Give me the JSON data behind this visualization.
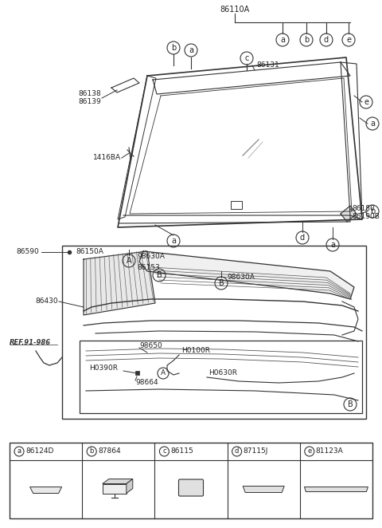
{
  "bg_color": "#ffffff",
  "line_color": "#333333",
  "text_color": "#222222",
  "fig_width": 4.8,
  "fig_height": 6.62,
  "parts_legend": [
    {
      "id": "a",
      "code": "86124D"
    },
    {
      "id": "b",
      "code": "87864"
    },
    {
      "id": "c",
      "code": "86115"
    },
    {
      "id": "d",
      "code": "87115J"
    },
    {
      "id": "e",
      "code": "81123A"
    }
  ]
}
